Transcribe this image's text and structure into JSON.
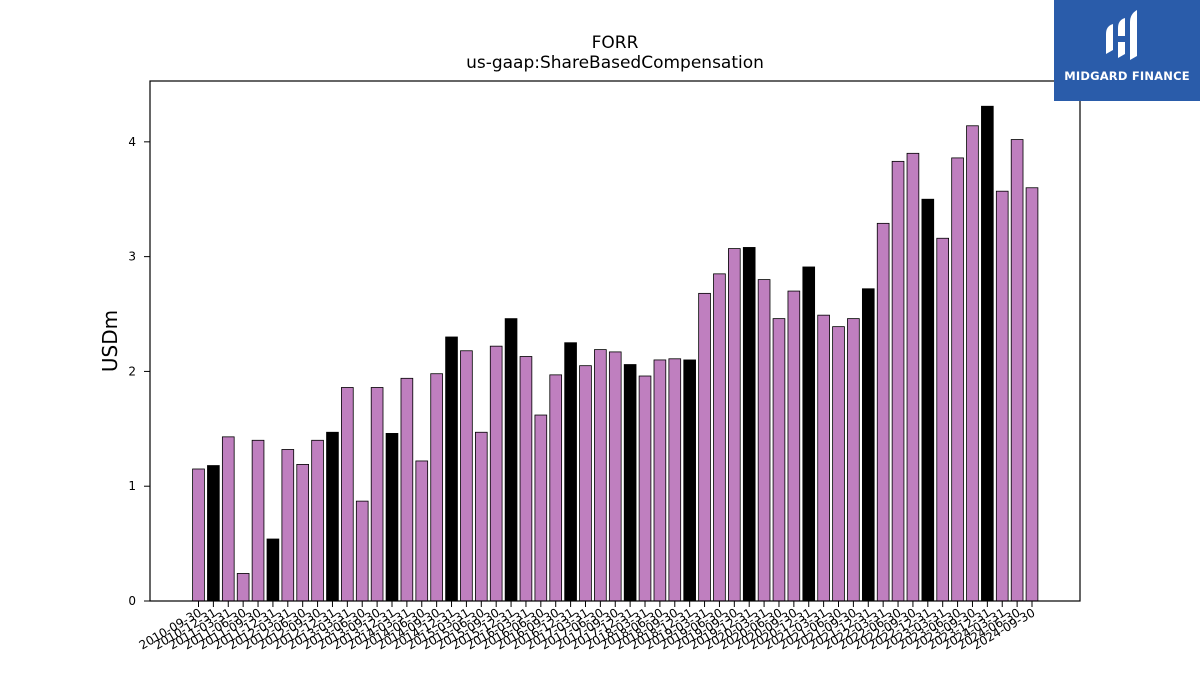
{
  "logo": {
    "text": "MIDGARD FINANCE",
    "icon": "midgard-m-logo",
    "bg_color": "#2a5caa"
  },
  "chart_data": {
    "type": "bar",
    "title": "FORR",
    "subtitle": "us-gaap:ShareBasedCompensation",
    "ylabel": "USDm",
    "xlabel": "",
    "ylim": [
      0,
      4.53
    ],
    "yticks": [
      0,
      1,
      2,
      3,
      4
    ],
    "grid": false,
    "colors": {
      "quarter": "#bf7fbf",
      "year_end": "#000000"
    },
    "categories": [
      "2010-09-30",
      "2010-12-31",
      "2011-03-31",
      "2011-06-30",
      "2011-09-30",
      "2011-12-31",
      "2012-03-31",
      "2012-06-30",
      "2012-09-30",
      "2012-12-31",
      "2013-03-31",
      "2013-06-30",
      "2013-09-30",
      "2013-12-31",
      "2014-03-31",
      "2014-06-30",
      "2014-09-30",
      "2014-12-31",
      "2015-03-31",
      "2015-06-30",
      "2015-09-30",
      "2015-12-31",
      "2016-03-31",
      "2016-06-30",
      "2016-09-30",
      "2016-12-31",
      "2017-03-31",
      "2017-06-30",
      "2017-09-30",
      "2017-12-31",
      "2018-03-31",
      "2018-06-30",
      "2018-09-30",
      "2018-12-31",
      "2019-03-31",
      "2019-06-30",
      "2019-09-30",
      "2019-12-31",
      "2020-03-31",
      "2020-06-30",
      "2020-09-30",
      "2020-12-31",
      "2021-03-31",
      "2021-06-30",
      "2021-09-30",
      "2021-12-31",
      "2022-03-31",
      "2022-06-30",
      "2022-09-30",
      "2022-12-31",
      "2023-03-31",
      "2023-06-30",
      "2023-09-30",
      "2023-12-31",
      "2024-03-31",
      "2024-06-30",
      "2024-09-30"
    ],
    "values": [
      1.15,
      1.18,
      1.43,
      0.24,
      1.4,
      0.54,
      1.32,
      1.19,
      1.4,
      1.47,
      1.86,
      0.87,
      1.86,
      1.46,
      1.94,
      1.22,
      1.98,
      2.3,
      2.18,
      1.47,
      2.22,
      2.46,
      2.13,
      1.62,
      1.97,
      2.25,
      2.05,
      2.19,
      2.17,
      2.06,
      1.96,
      2.1,
      2.11,
      2.1,
      2.68,
      2.85,
      3.07,
      3.08,
      2.8,
      2.46,
      2.7,
      2.91,
      2.49,
      2.39,
      2.46,
      2.72,
      3.29,
      3.83,
      3.9,
      3.5,
      3.16,
      3.86,
      4.14,
      4.31,
      3.57,
      4.02,
      3.6
    ],
    "year_end": [
      false,
      true,
      false,
      false,
      false,
      true,
      false,
      false,
      false,
      true,
      false,
      false,
      false,
      true,
      false,
      false,
      false,
      true,
      false,
      false,
      false,
      true,
      false,
      false,
      false,
      true,
      false,
      false,
      false,
      true,
      false,
      false,
      false,
      true,
      false,
      false,
      false,
      true,
      false,
      false,
      false,
      true,
      false,
      false,
      false,
      true,
      false,
      false,
      false,
      true,
      false,
      false,
      false,
      true,
      false,
      false,
      false
    ]
  }
}
